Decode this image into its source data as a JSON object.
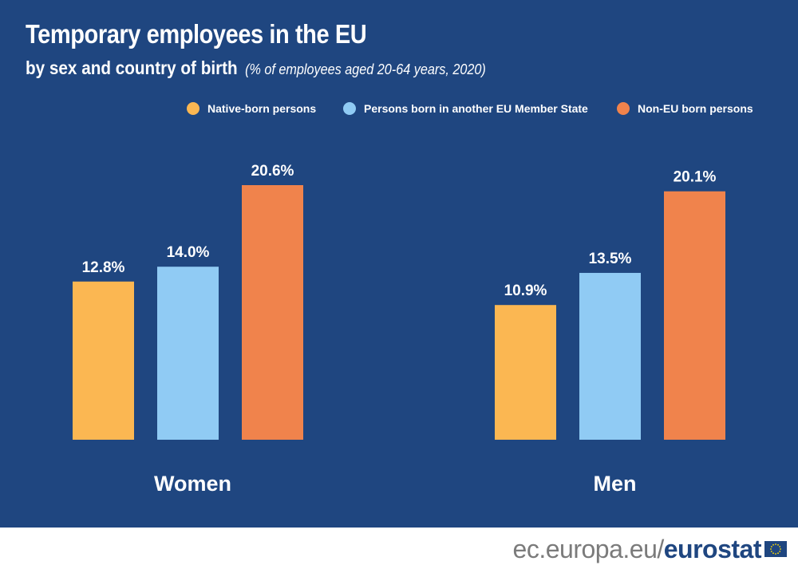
{
  "header": {
    "title": "Temporary employees in the EU",
    "subtitle": "by sex and country of birth",
    "note": "(% of employees aged 20-64 years, 2020)"
  },
  "legend": [
    {
      "label": "Native-born persons",
      "color": "#fbb752"
    },
    {
      "label": "Persons born in another EU Member State",
      "color": "#90cbf4"
    },
    {
      "label": "Non-EU born persons",
      "color": "#f0834c"
    }
  ],
  "colors": {
    "background": "#1f4680",
    "text": "#ffffff"
  },
  "chart_data": {
    "type": "bar",
    "title": "Temporary employees in the EU",
    "subtitle": "by sex and country of birth",
    "categories": [
      "Women",
      "Men"
    ],
    "series": [
      {
        "name": "Native-born persons",
        "values": [
          12.8,
          10.9
        ],
        "labels": [
          "12.8%",
          "10.9%"
        ],
        "color": "#fbb752"
      },
      {
        "name": "Persons born in another EU Member State",
        "values": [
          14.0,
          13.5
        ],
        "labels": [
          "14.0%",
          "13.5%"
        ],
        "color": "#90cbf4"
      },
      {
        "name": "Non-EU born persons",
        "values": [
          20.6,
          20.1
        ],
        "labels": [
          "20.6%",
          "20.1%"
        ],
        "color": "#f0834c"
      }
    ],
    "ylim": [
      0,
      20.6
    ],
    "grid": false,
    "legend_position": "top-right"
  },
  "footer": {
    "url": "ec.europa.eu/",
    "brand": "eurostat"
  }
}
